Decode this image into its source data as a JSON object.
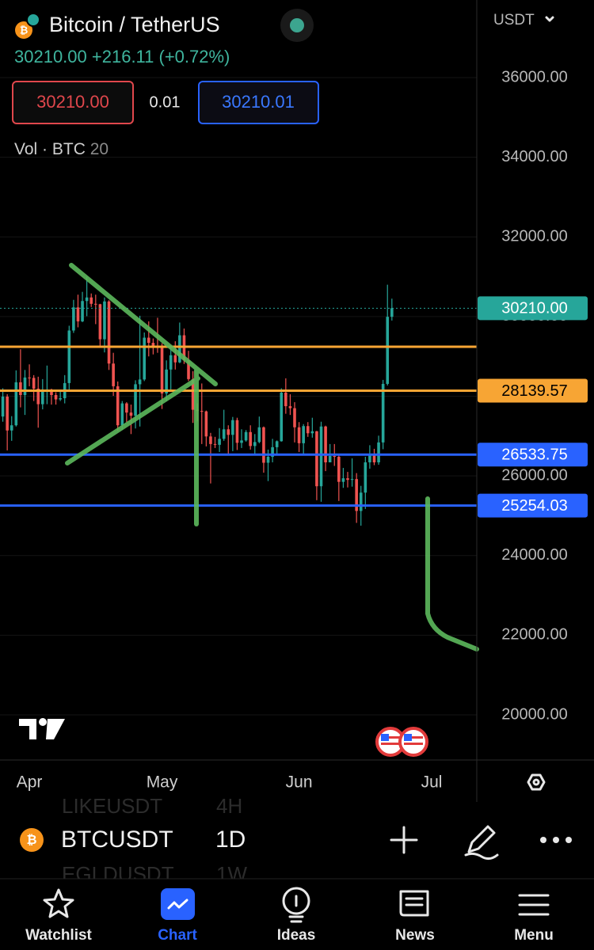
{
  "header": {
    "title": "Bitcoin / TetherUS",
    "last": "30210.00",
    "change": "+216.11 (+0.72%)",
    "bid": "30210.00",
    "spread": "0.01",
    "ask": "30210.01",
    "volume_label": "Vol · BTC",
    "volume_length": "20"
  },
  "chart_data": {
    "type": "candlestick",
    "currency": "USDT",
    "up_color": "#26a69a",
    "down_color": "#ef5350",
    "open": [
      27470,
      27490,
      27990,
      27140,
      27270,
      28350,
      28030,
      28470,
      28460,
      28190,
      27800,
      28170,
      28170,
      28030,
      27920,
      27950,
      28330,
      29650,
      30230,
      29880,
      30390,
      30480,
      30320,
      30310,
      29430,
      30380,
      28820,
      28250,
      27270,
      27820,
      27590,
      27510,
      28300,
      28420,
      29470,
      29340,
      29250,
      29230,
      28070,
      28670,
      29030,
      28850,
      29530,
      28900,
      28430,
      27660,
      27630,
      27620,
      26990,
      26800,
      26780,
      26930,
      27170,
      27030,
      27400,
      26830,
      26890,
      27100,
      26750,
      26850,
      27220,
      26330,
      26480,
      26720,
      26870,
      28090,
      27750,
      27700,
      27220,
      26820,
      27250,
      27070,
      27120,
      25740,
      27240,
      26340,
      26500,
      26480,
      25850,
      25940,
      25900,
      25920,
      25120,
      25580,
      26340,
      26510,
      26340,
      26840,
      28310,
      29994
    ],
    "high": [
      27890,
      28200,
      28050,
      27500,
      28650,
      29180,
      28660,
      28800,
      28530,
      28490,
      28430,
      28770,
      28190,
      28100,
      28170,
      28530,
      29770,
      30420,
      30550,
      30620,
      31000,
      30580,
      30550,
      30320,
      30480,
      30410,
      29090,
      28370,
      27880,
      27850,
      27790,
      28400,
      30020,
      29600,
      29880,
      29450,
      29970,
      29330,
      28900,
      29270,
      29380,
      29850,
      29700,
      29140,
      28630,
      27820,
      28320,
      27640,
      27080,
      26980,
      27200,
      27660,
      27270,
      27480,
      27460,
      27170,
      27150,
      27270,
      27050,
      27490,
      27240,
      26660,
      26930,
      26890,
      28200,
      28450,
      28050,
      27850,
      27350,
      27300,
      27350,
      27460,
      27130,
      27360,
      27260,
      26800,
      26800,
      26540,
      26200,
      26100,
      26440,
      26070,
      25750,
      26480,
      26770,
      26680,
      27010,
      28410,
      30800,
      30450
    ],
    "low": [
      27160,
      27360,
      26640,
      26880,
      27240,
      27720,
      27530,
      28250,
      27880,
      27210,
      27670,
      27800,
      27790,
      27790,
      27880,
      27820,
      28170,
      29590,
      29730,
      29860,
      30010,
      30240,
      29810,
      29270,
      29100,
      28660,
      28010,
      27130,
      27160,
      27350,
      27050,
      27190,
      27240,
      28380,
      29000,
      29050,
      29090,
      27680,
      27870,
      28140,
      28670,
      28830,
      28810,
      28380,
      27330,
      27370,
      26800,
      26740,
      25810,
      26700,
      26600,
      26880,
      26550,
      26620,
      26650,
      26700,
      26860,
      26660,
      26520,
      26820,
      26080,
      25870,
      26340,
      26550,
      26860,
      27560,
      27530,
      26840,
      26600,
      26540,
      26980,
      26960,
      25390,
      25350,
      26120,
      26340,
      26250,
      25370,
      25700,
      25710,
      25730,
      24820,
      24750,
      25170,
      26180,
      26270,
      26280,
      26670,
      28270,
      29900
    ],
    "close": [
      27490,
      27990,
      27140,
      27270,
      28350,
      28030,
      28470,
      28460,
      28190,
      27800,
      28170,
      28170,
      28030,
      27920,
      27950,
      28330,
      29650,
      30230,
      29880,
      30390,
      30480,
      30320,
      30310,
      29430,
      30380,
      28820,
      28250,
      27270,
      27820,
      27590,
      27510,
      28300,
      28420,
      29470,
      29340,
      29250,
      29230,
      28070,
      28670,
      29030,
      28850,
      29530,
      28900,
      28430,
      27660,
      27630,
      27620,
      26990,
      26800,
      26780,
      26930,
      27170,
      27030,
      27400,
      26830,
      26890,
      27100,
      26750,
      26850,
      27220,
      26330,
      26480,
      26720,
      26870,
      28090,
      27750,
      27700,
      27220,
      26820,
      27250,
      27070,
      27120,
      25740,
      27240,
      26340,
      26500,
      26480,
      25850,
      25940,
      25900,
      25920,
      25120,
      25580,
      26340,
      26510,
      26340,
      26840,
      28310,
      29994,
      30210
    ],
    "xlim": [
      0.36,
      108.2
    ],
    "xticks": [
      {
        "value": 7,
        "label": "Apr"
      },
      {
        "value": 37,
        "label": "May"
      },
      {
        "value": 68,
        "label": "Jun"
      },
      {
        "value": 98,
        "label": "Jul"
      }
    ],
    "ylim": [
      18867,
      37948
    ],
    "yticks": [
      {
        "value": 20000,
        "label": "20000.00"
      },
      {
        "value": 22000,
        "label": "22000.00"
      },
      {
        "value": 24000,
        "label": "24000.00"
      },
      {
        "value": 26000,
        "label": "26000.00"
      },
      {
        "value": 28000,
        "label": "28000.00"
      },
      {
        "value": 30000,
        "label": "30000.00"
      },
      {
        "value": 32000,
        "label": "32000.00"
      },
      {
        "value": 34000,
        "label": "34000.00"
      },
      {
        "value": 36000,
        "label": "36000.00"
      }
    ],
    "grid": true,
    "last_price": {
      "value": 30210,
      "label": "30210.00",
      "color": "#26a69a",
      "label_text_color": "#ffffff"
    },
    "horizontal_lines": [
      {
        "value": 29242,
        "color": "#f7a534"
      }
    ],
    "price_lines": [
      {
        "value": 28139.57,
        "color": "#f7a534",
        "label_text_color": "#000000"
      },
      {
        "value": 26533.75,
        "color": "#2962ff",
        "label_text_color": "#ffffff"
      },
      {
        "value": 25254.03,
        "color": "#2962ff",
        "label_text_color": "#ffffff"
      }
    ]
  },
  "toolbar": {
    "symbol": "BTCUSDT",
    "interval": "1D",
    "prev_symbol": "LIKEUSDT",
    "prev_interval": "4H",
    "next_symbol": "EGLDUSDT",
    "next_interval": "1W"
  },
  "tabs": [
    "Watchlist",
    "Chart",
    "Ideas",
    "News",
    "Menu"
  ]
}
